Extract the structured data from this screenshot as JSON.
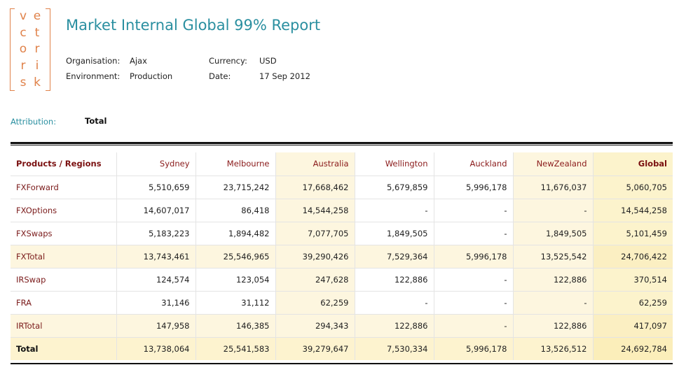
{
  "logo": {
    "letters": [
      "v",
      "e",
      "c",
      "t",
      "o",
      "r",
      "r",
      "i",
      "s",
      "k"
    ]
  },
  "report": {
    "title": "Market Internal Global 99% Report"
  },
  "meta": {
    "organisation_label": "Organisation:",
    "organisation_value": "Ajax",
    "environment_label": "Environment:",
    "environment_value": "Production",
    "currency_label": "Currency:",
    "currency_value": "USD",
    "date_label": "Date:",
    "date_value": "17 Sep 2012"
  },
  "attribution": {
    "label": "Attribution:",
    "value": "Total"
  },
  "table": {
    "columns": [
      "Products / Regions",
      "Sydney",
      "Melbourne",
      "Australia",
      "Wellington",
      "Auckland",
      "NewZealand",
      "Global"
    ],
    "rows": [
      {
        "type": "normal",
        "cells": [
          "FXForward",
          "5,510,659",
          "23,715,242",
          "17,668,462",
          "5,679,859",
          "5,996,178",
          "11,676,037",
          "5,060,705"
        ]
      },
      {
        "type": "normal",
        "cells": [
          "FXOptions",
          "14,607,017",
          "86,418",
          "14,544,258",
          "-",
          "-",
          "-",
          "14,544,258"
        ]
      },
      {
        "type": "normal",
        "cells": [
          "FXSwaps",
          "5,183,223",
          "1,894,482",
          "7,077,705",
          "1,849,505",
          "-",
          "1,849,505",
          "5,101,459"
        ]
      },
      {
        "type": "subtotal",
        "cells": [
          "FXTotal",
          "13,743,461",
          "25,546,965",
          "39,290,426",
          "7,529,364",
          "5,996,178",
          "13,525,542",
          "24,706,422"
        ]
      },
      {
        "type": "normal",
        "cells": [
          "IRSwap",
          "124,574",
          "123,054",
          "247,628",
          "122,886",
          "-",
          "122,886",
          "370,514"
        ]
      },
      {
        "type": "normal",
        "cells": [
          "FRA",
          "31,146",
          "31,112",
          "62,259",
          "-",
          "-",
          "-",
          "62,259"
        ]
      },
      {
        "type": "subtotal",
        "cells": [
          "IRTotal",
          "147,958",
          "146,385",
          "294,343",
          "122,886",
          "-",
          "122,886",
          "417,097"
        ]
      },
      {
        "type": "total",
        "cells": [
          "Total",
          "13,738,064",
          "25,541,583",
          "39,279,647",
          "7,530,334",
          "5,996,178",
          "13,526,512",
          "24,692,784"
        ]
      }
    ]
  },
  "colors": {
    "accent": "#2a8fa0",
    "logo": "#e0824a",
    "row_label": "#7a1a1a"
  }
}
